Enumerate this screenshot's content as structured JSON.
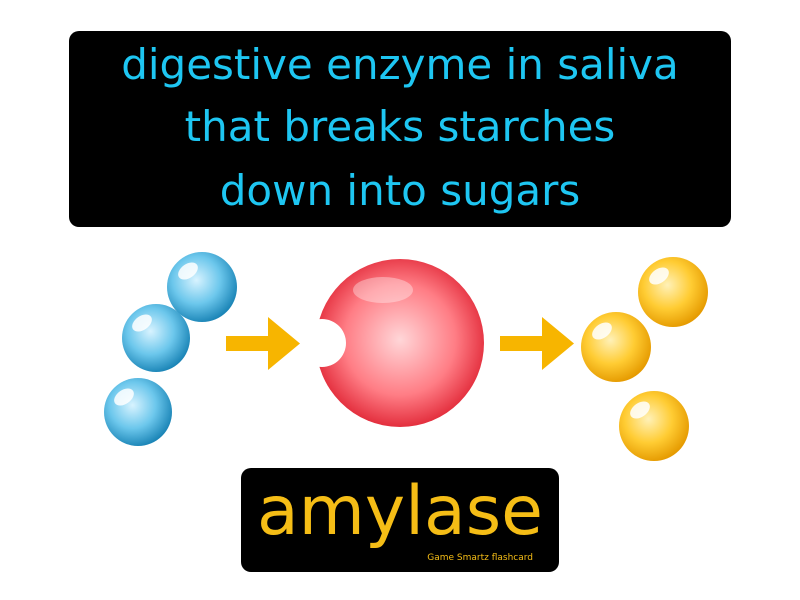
{
  "definition": {
    "lines": [
      "digestive enzyme in saliva",
      "that breaks starches",
      "down into sugars"
    ],
    "color": "#1ec6f2"
  },
  "term": {
    "text": "amylase",
    "credit": "Game Smartz flashcard",
    "color": "#f5bd16"
  },
  "illustration": {
    "starch_color": "#2f9fd0",
    "enzyme_color": "#ef3b4a",
    "sugar_color": "#f5b400",
    "arrow_color": "#f7b500"
  }
}
